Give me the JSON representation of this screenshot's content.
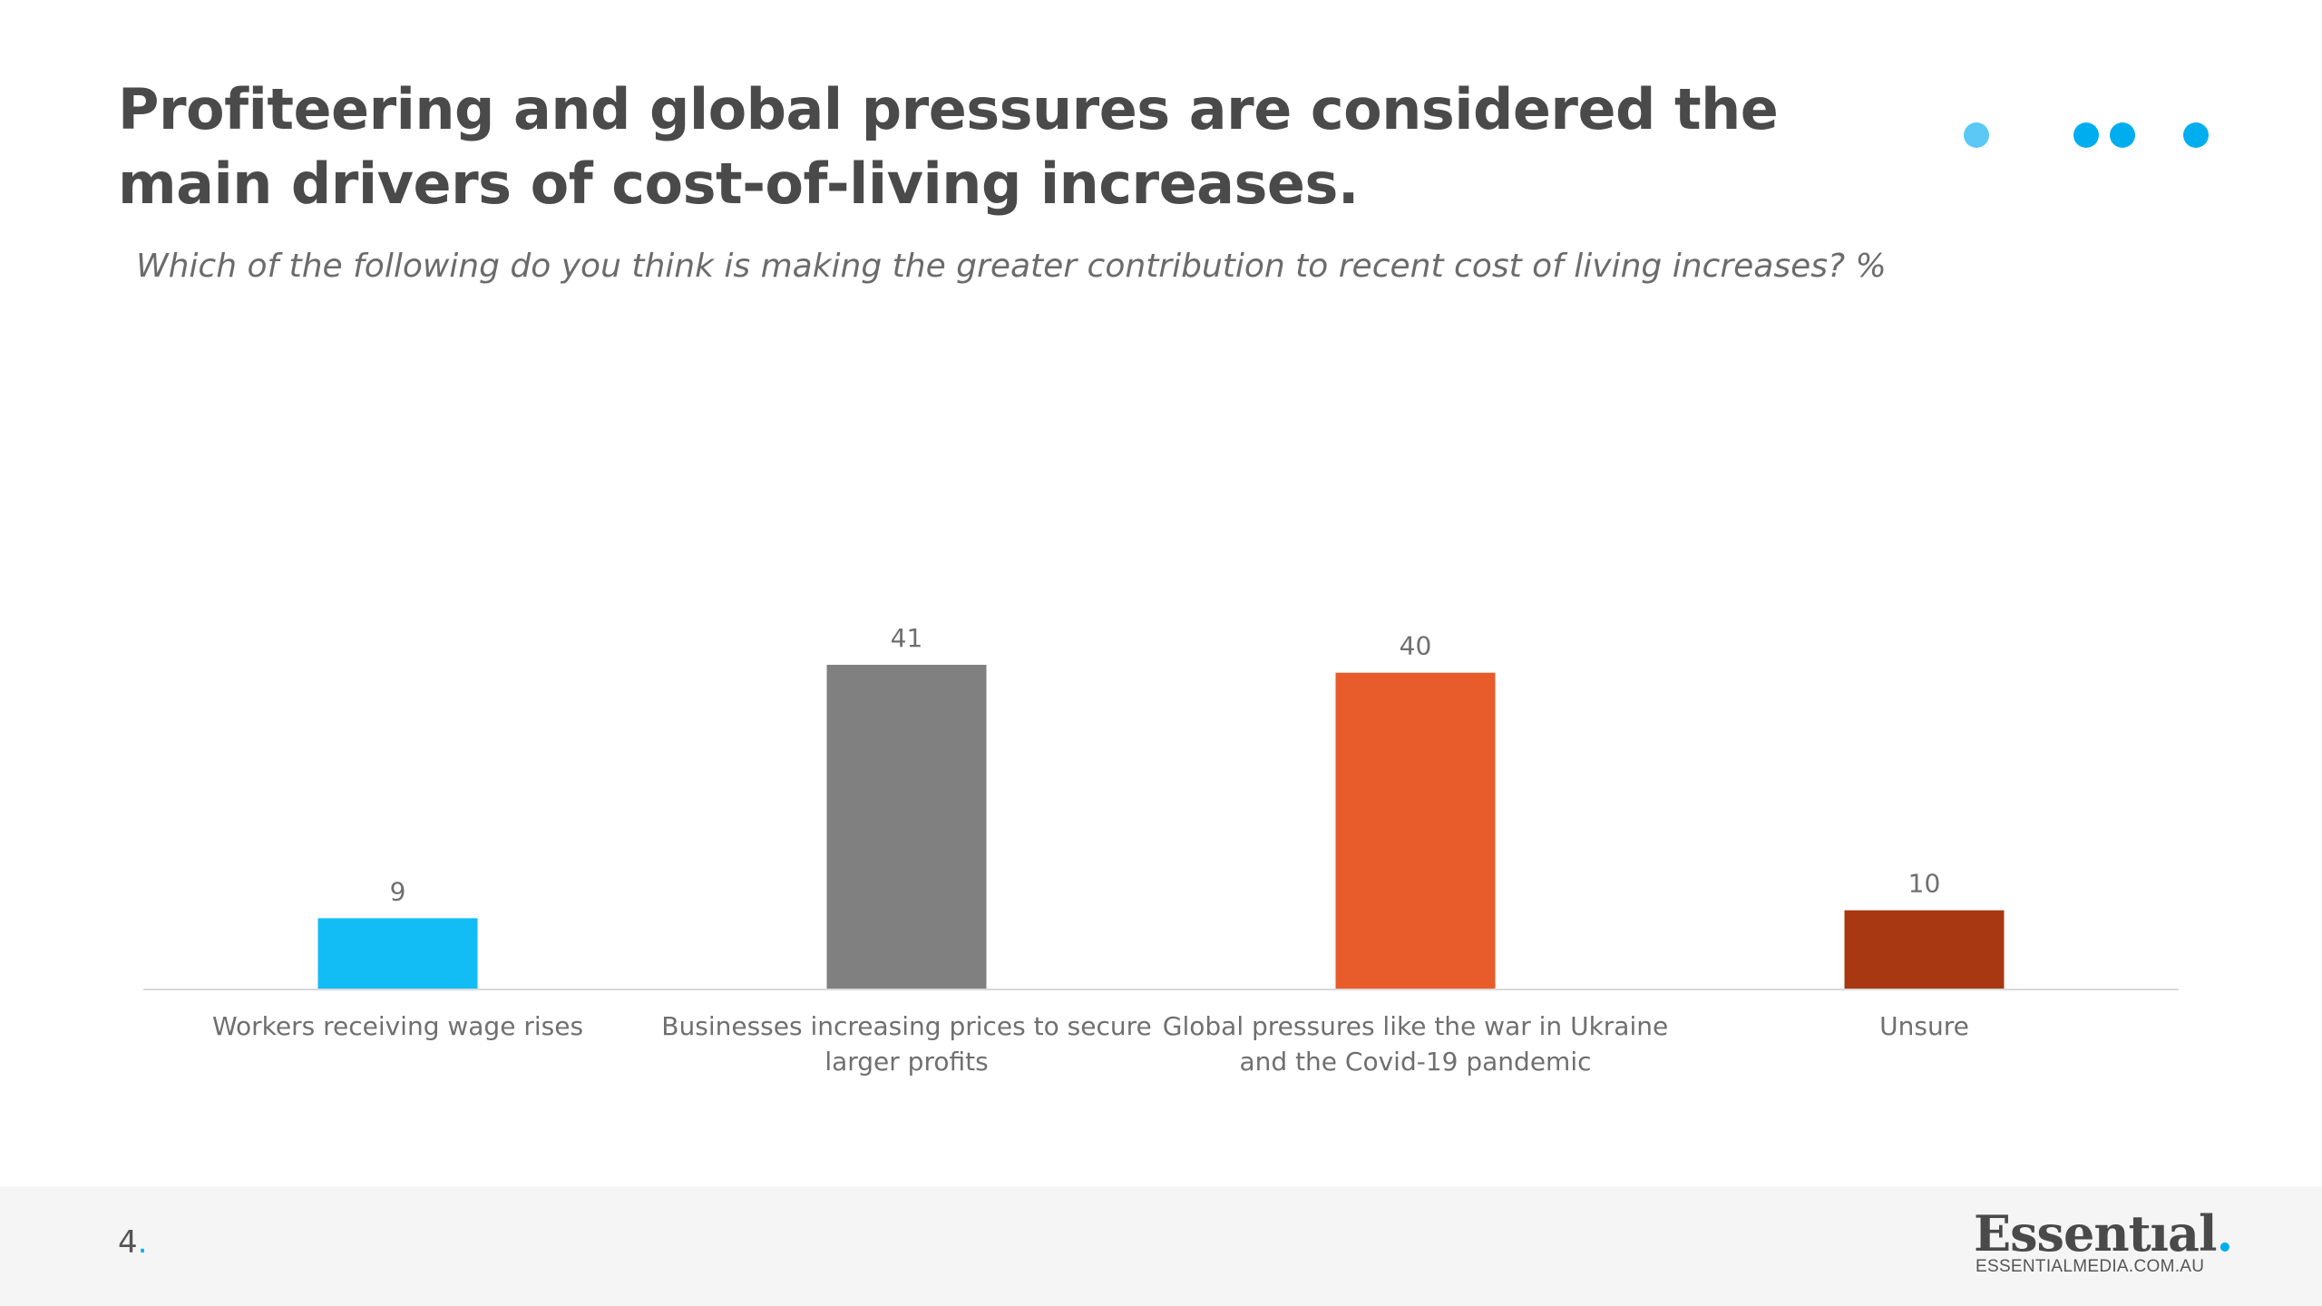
{
  "slide": {
    "title": "Profiteering and global pressures are considered the main drivers of cost-of-living increases.",
    "subtitle": "Which of the following do you think is making the greater contribution to recent cost of living increases? %",
    "page_number": "4",
    "page_number_suffix": ".",
    "dot_colors": [
      "#5bc8f5",
      "#00aeef",
      "#00aeef",
      "#00aeef"
    ]
  },
  "logo": {
    "word": "Essentıal",
    "dot": ".",
    "url": "ESSENTIALMEDIA.COM.AU"
  },
  "chart_data": {
    "type": "bar",
    "categories": [
      "Workers receiving wage rises",
      "Businesses increasing prices to secure larger profits",
      "Global pressures like the war in Ukraine and the Covid-19 pandemic",
      "Unsure"
    ],
    "values": [
      9,
      41,
      40,
      10
    ],
    "data_labels": [
      "9",
      "41",
      "40",
      "10"
    ],
    "colors": [
      "#12bdf6",
      "#808080",
      "#e85b2b",
      "#a83812"
    ],
    "ylim": [
      0,
      41
    ],
    "grid": false,
    "legend": "none"
  }
}
